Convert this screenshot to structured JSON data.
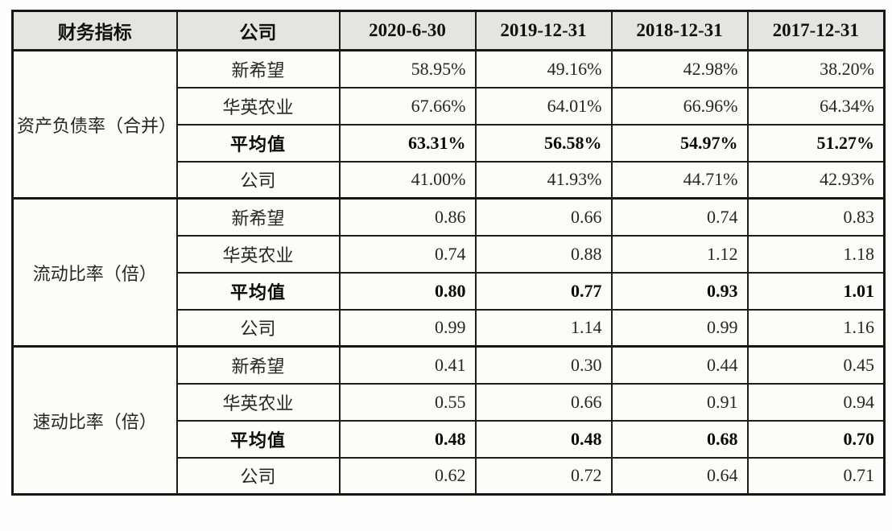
{
  "table": {
    "header": [
      "财务指标",
      "公司",
      "2020-6-30",
      "2019-12-31",
      "2018-12-31",
      "2017-12-31"
    ],
    "sections": [
      {
        "indicator": "资产负债率（合并）",
        "rows": [
          {
            "company": "新希望",
            "bold": false,
            "values": [
              "58.95%",
              "49.16%",
              "42.98%",
              "38.20%"
            ]
          },
          {
            "company": "华英农业",
            "bold": false,
            "values": [
              "67.66%",
              "64.01%",
              "66.96%",
              "64.34%"
            ]
          },
          {
            "company": "平均值",
            "bold": true,
            "values": [
              "63.31%",
              "56.58%",
              "54.97%",
              "51.27%"
            ]
          },
          {
            "company": "公司",
            "bold": false,
            "values": [
              "41.00%",
              "41.93%",
              "44.71%",
              "42.93%"
            ]
          }
        ]
      },
      {
        "indicator": "流动比率（倍）",
        "rows": [
          {
            "company": "新希望",
            "bold": false,
            "values": [
              "0.86",
              "0.66",
              "0.74",
              "0.83"
            ]
          },
          {
            "company": "华英农业",
            "bold": false,
            "values": [
              "0.74",
              "0.88",
              "1.12",
              "1.18"
            ]
          },
          {
            "company": "平均值",
            "bold": true,
            "values": [
              "0.80",
              "0.77",
              "0.93",
              "1.01"
            ]
          },
          {
            "company": "公司",
            "bold": false,
            "values": [
              "0.99",
              "1.14",
              "0.99",
              "1.16"
            ]
          }
        ]
      },
      {
        "indicator": "速动比率（倍）",
        "rows": [
          {
            "company": "新希望",
            "bold": false,
            "values": [
              "0.41",
              "0.30",
              "0.44",
              "0.45"
            ]
          },
          {
            "company": "华英农业",
            "bold": false,
            "values": [
              "0.55",
              "0.66",
              "0.91",
              "0.94"
            ]
          },
          {
            "company": "平均值",
            "bold": true,
            "values": [
              "0.48",
              "0.48",
              "0.68",
              "0.70"
            ]
          },
          {
            "company": "公司",
            "bold": false,
            "values": [
              "0.62",
              "0.72",
              "0.64",
              "0.71"
            ]
          }
        ]
      }
    ]
  },
  "colors": {
    "header_background": "#e4e4e2",
    "cell_background": "#fcfcfb",
    "border": "#161616",
    "text": "#262626"
  }
}
